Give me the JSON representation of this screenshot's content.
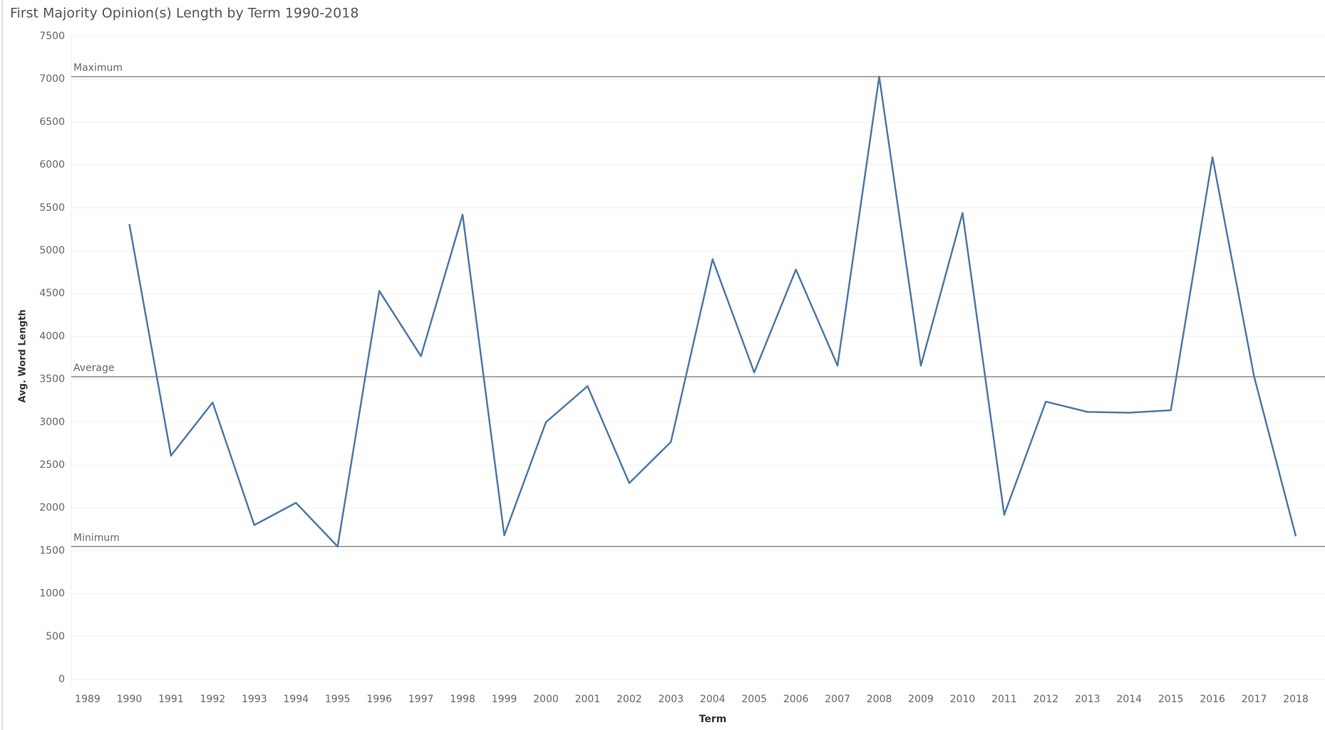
{
  "chart_data": {
    "type": "line",
    "title": "First Majority Opinion(s) Length by Term  1990-2018",
    "x_label": "Term",
    "y_label": "Avg. Word Length",
    "categories": [
      "1989",
      "1990",
      "1991",
      "1992",
      "1993",
      "1994",
      "1995",
      "1996",
      "1997",
      "1998",
      "1999",
      "2000",
      "2001",
      "2002",
      "2003",
      "2004",
      "2005",
      "2006",
      "2007",
      "2008",
      "2009",
      "2010",
      "2011",
      "2012",
      "2013",
      "2014",
      "2015",
      "2016",
      "2017",
      "2018"
    ],
    "series": [
      {
        "name": "Avg. Word Length",
        "color": "#4e79a7",
        "values": [
          null,
          5310,
          2610,
          3230,
          1800,
          2060,
          1550,
          4530,
          3770,
          5420,
          1680,
          3000,
          3420,
          2290,
          2770,
          4900,
          3580,
          4780,
          3660,
          7030,
          3660,
          5440,
          1920,
          3240,
          3120,
          3110,
          3140,
          6090,
          3530,
          1670
        ]
      }
    ],
    "reference_lines": [
      {
        "label": "Maximum",
        "value": 7030
      },
      {
        "label": "Average",
        "value": 3530
      },
      {
        "label": "Minimum",
        "value": 1550
      }
    ],
    "ylim": [
      0,
      7500
    ],
    "yticks": [
      0,
      500,
      1000,
      1500,
      2000,
      2500,
      3000,
      3500,
      4000,
      4500,
      5000,
      5500,
      6000,
      6500,
      7000,
      7500
    ],
    "grid": true
  }
}
